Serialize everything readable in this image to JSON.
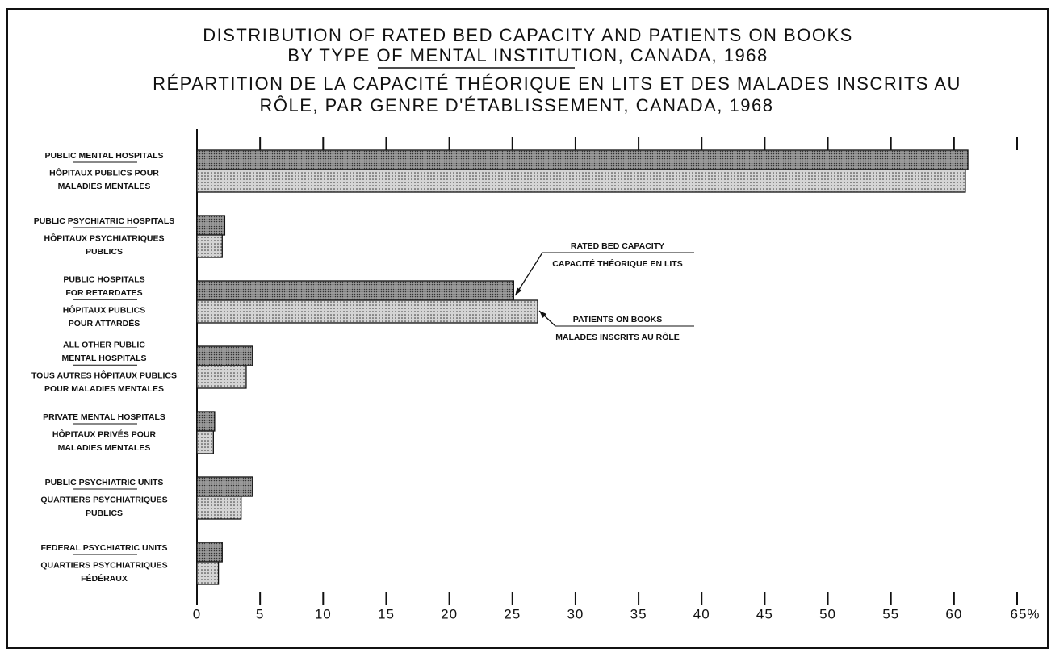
{
  "chart_data": {
    "type": "bar",
    "orientation": "horizontal",
    "title": [
      "DISTRIBUTION OF RATED BED CAPACITY AND PATIENTS ON BOOKS",
      "BY TYPE OF MENTAL INSTITUTION, CANADA, 1968"
    ],
    "title_fr": [
      "RÉPARTITION DE LA CAPACITÉ THÉORIQUE EN LITS ET DES MALADES INSCRITS AU",
      "RÔLE, PAR GENRE D'ÉTABLISSEMENT, CANADA, 1968"
    ],
    "categories": [
      {
        "en": [
          "PUBLIC MENTAL HOSPITALS"
        ],
        "fr": [
          "HÔPITAUX PUBLICS POUR",
          "MALADIES MENTALES"
        ]
      },
      {
        "en": [
          "PUBLIC PSYCHIATRIC HOSPITALS"
        ],
        "fr": [
          "HÔPITAUX PSYCHIATRIQUES",
          "PUBLICS"
        ]
      },
      {
        "en": [
          "PUBLIC HOSPITALS",
          "FOR RETARDATES"
        ],
        "fr": [
          "HÔPITAUX PUBLICS",
          "POUR ATTARDÉS"
        ]
      },
      {
        "en": [
          "ALL OTHER PUBLIC",
          "MENTAL HOSPITALS"
        ],
        "fr": [
          "TOUS AUTRES HÔPITAUX PUBLICS",
          "POUR MALADIES MENTALES"
        ]
      },
      {
        "en": [
          "PRIVATE MENTAL HOSPITALS"
        ],
        "fr": [
          "HÔPITAUX PRIVÉS POUR",
          "MALADIES MENTALES"
        ]
      },
      {
        "en": [
          "PUBLIC PSYCHIATRIC UNITS"
        ],
        "fr": [
          "QUARTIERS PSYCHIATRIQUES",
          "PUBLICS"
        ]
      },
      {
        "en": [
          "FEDERAL PSYCHIATRIC UNITS"
        ],
        "fr": [
          "QUARTIERS PSYCHIATRIQUES",
          "FÉDÉRAUX"
        ]
      }
    ],
    "series": [
      {
        "name": "RATED BED CAPACITY",
        "name_fr": "CAPACITÉ THÉORIQUE EN LITS",
        "color": "#9a9a9a",
        "values": [
          61.1,
          2.2,
          25.1,
          4.4,
          1.4,
          4.4,
          2.0
        ]
      },
      {
        "name": "PATIENTS ON BOOKS",
        "name_fr": "MALADES INSCRITS AU RÔLE",
        "color": "#d4d4d4",
        "values": [
          60.9,
          2.0,
          27.0,
          3.9,
          1.3,
          3.5,
          1.7
        ]
      }
    ],
    "xlim": [
      0,
      65
    ],
    "xticks": [
      0,
      5,
      10,
      15,
      20,
      25,
      30,
      35,
      40,
      45,
      50,
      55,
      60,
      {
        "value": 65,
        "label": "65%"
      }
    ]
  }
}
